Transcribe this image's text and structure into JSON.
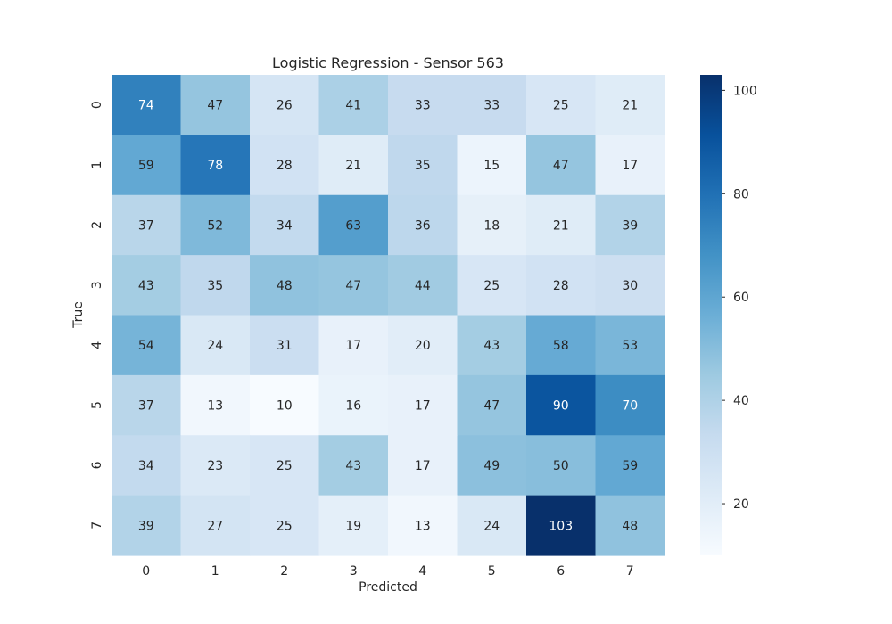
{
  "chart_data": {
    "type": "heatmap",
    "title": "Logistic Regression - Sensor 563",
    "xlabel": "Predicted",
    "ylabel": "True",
    "x_categories": [
      "0",
      "1",
      "2",
      "3",
      "4",
      "5",
      "6",
      "7"
    ],
    "y_categories": [
      "0",
      "1",
      "2",
      "3",
      "4",
      "5",
      "6",
      "7"
    ],
    "values": [
      [
        74,
        47,
        26,
        41,
        33,
        33,
        25,
        21
      ],
      [
        59,
        78,
        28,
        21,
        35,
        15,
        47,
        17
      ],
      [
        37,
        52,
        34,
        63,
        36,
        18,
        21,
        39
      ],
      [
        43,
        35,
        48,
        47,
        44,
        25,
        28,
        30
      ],
      [
        54,
        24,
        31,
        17,
        20,
        43,
        58,
        53
      ],
      [
        37,
        13,
        10,
        16,
        17,
        47,
        90,
        70
      ],
      [
        34,
        23,
        25,
        43,
        17,
        49,
        50,
        59
      ],
      [
        39,
        27,
        25,
        19,
        13,
        24,
        103,
        48
      ]
    ],
    "colorbar": {
      "colormap": "Blues",
      "vmin": 10,
      "vmax": 103,
      "ticks": [
        20,
        40,
        60,
        80,
        100
      ]
    }
  }
}
